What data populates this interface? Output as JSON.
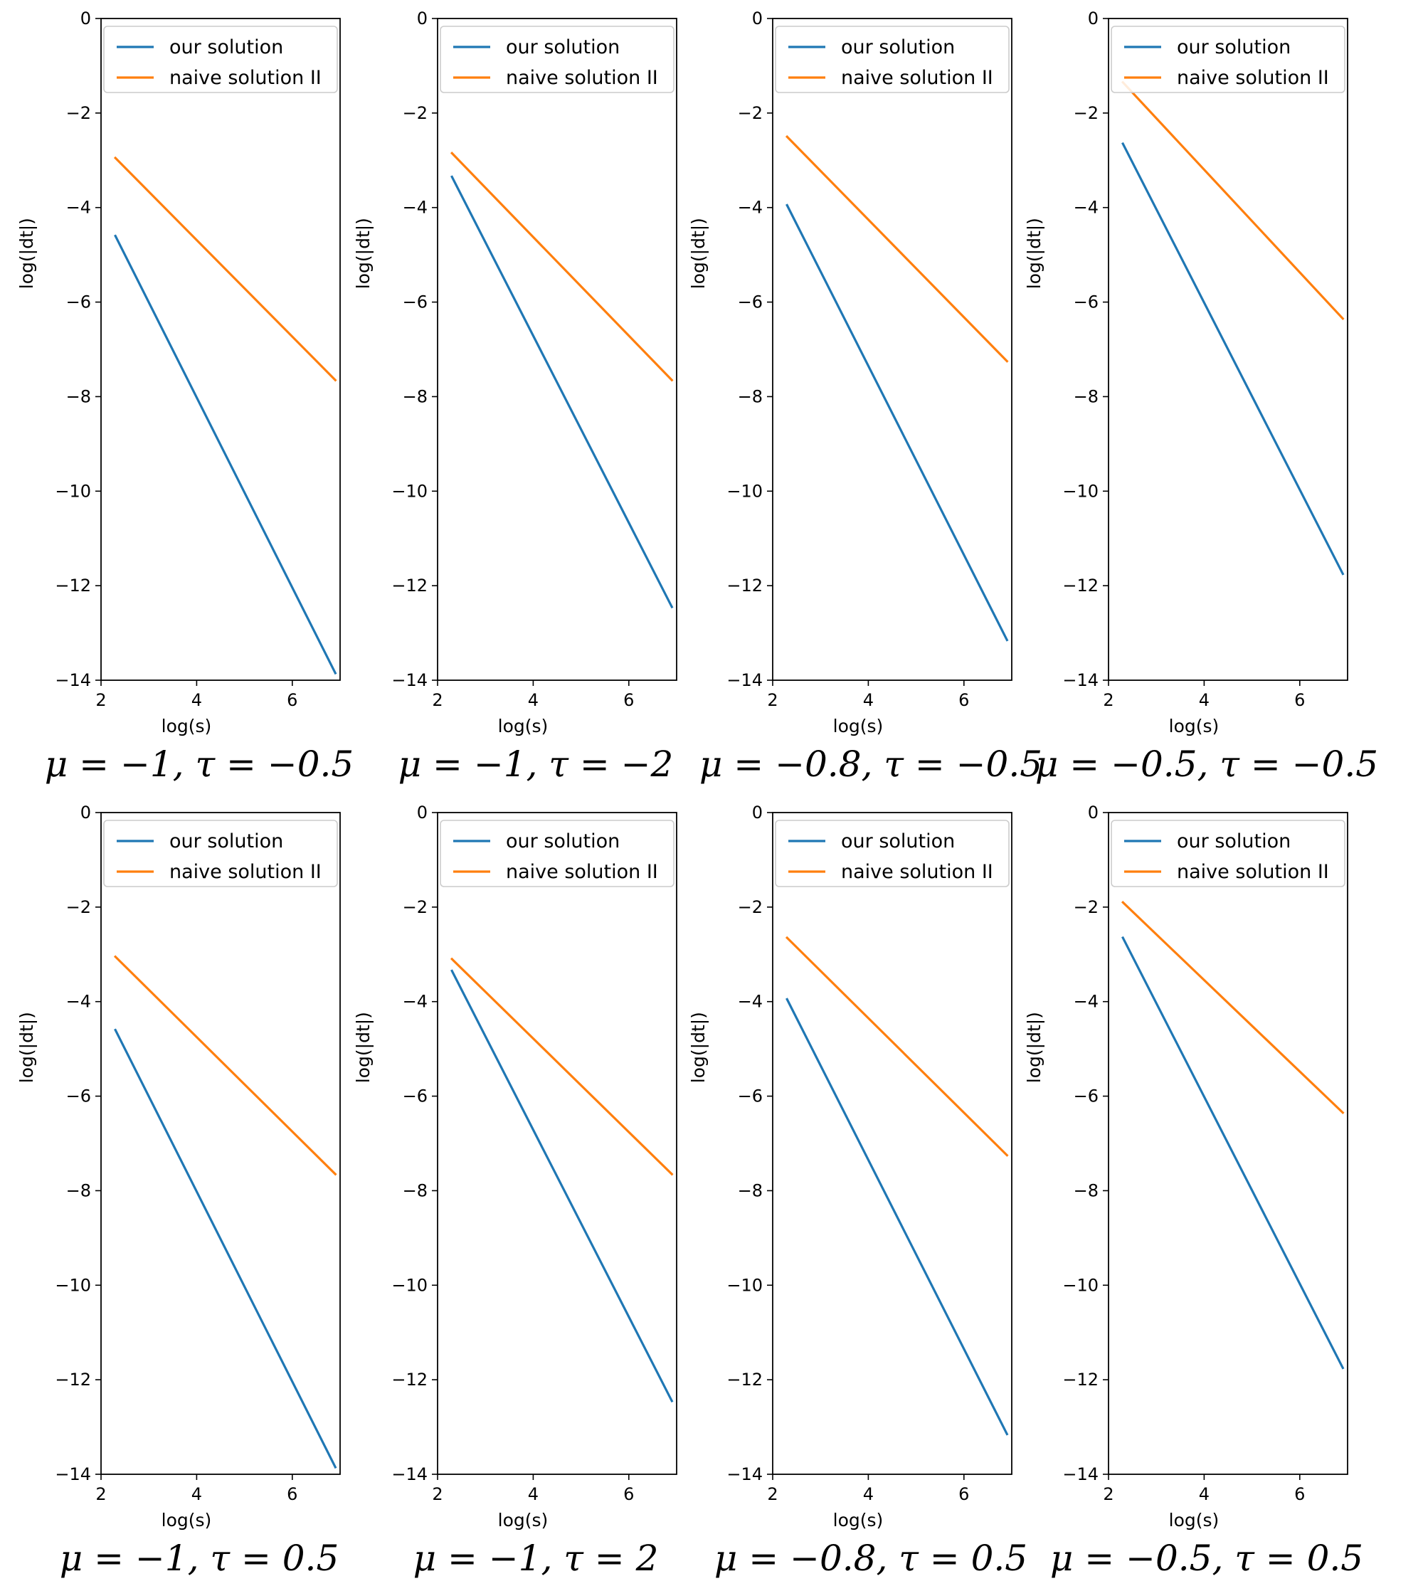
{
  "colors": {
    "our": "#1f77b4",
    "naive": "#ff7f0e"
  },
  "legend_labels": [
    "our solution",
    "naive solution II"
  ],
  "chart_data": [
    {
      "type": "line",
      "caption": "μ = −1, τ = −0.5",
      "xlabel": "log(s)",
      "ylabel": "log(|dt|)",
      "xlim": [
        2,
        7
      ],
      "ylim": [
        -14,
        0
      ],
      "xticks": [
        2,
        4,
        6
      ],
      "yticks": [
        0,
        -2,
        -4,
        -6,
        -8,
        -10,
        -12,
        -14
      ],
      "grid": false,
      "legend": "top-right",
      "series": [
        {
          "name": "our solution",
          "x": [
            2.3,
            6.9
          ],
          "y": [
            -4.6,
            -13.85
          ]
        },
        {
          "name": "naive solution II",
          "x": [
            2.3,
            6.9
          ],
          "y": [
            -2.95,
            -7.65
          ]
        }
      ]
    },
    {
      "type": "line",
      "caption": "μ = −1, τ = −2",
      "xlabel": "log(s)",
      "ylabel": "log(|dt|)",
      "xlim": [
        2,
        7
      ],
      "ylim": [
        -14,
        0
      ],
      "xticks": [
        2,
        4,
        6
      ],
      "yticks": [
        0,
        -2,
        -4,
        -6,
        -8,
        -10,
        -12,
        -14
      ],
      "grid": false,
      "legend": "top-right",
      "series": [
        {
          "name": "our solution",
          "x": [
            2.3,
            6.9
          ],
          "y": [
            -3.35,
            -12.45
          ]
        },
        {
          "name": "naive solution II",
          "x": [
            2.3,
            6.9
          ],
          "y": [
            -2.85,
            -7.65
          ]
        }
      ]
    },
    {
      "type": "line",
      "caption": "μ = −0.8, τ = −0.5",
      "xlabel": "log(s)",
      "ylabel": "log(|dt|)",
      "xlim": [
        2,
        7
      ],
      "ylim": [
        -14,
        0
      ],
      "xticks": [
        2,
        4,
        6
      ],
      "yticks": [
        0,
        -2,
        -4,
        -6,
        -8,
        -10,
        -12,
        -14
      ],
      "grid": false,
      "legend": "top-right",
      "series": [
        {
          "name": "our solution",
          "x": [
            2.3,
            6.9
          ],
          "y": [
            -3.95,
            -13.15
          ]
        },
        {
          "name": "naive solution II",
          "x": [
            2.3,
            6.9
          ],
          "y": [
            -2.5,
            -7.25
          ]
        }
      ]
    },
    {
      "type": "line",
      "caption": "μ = −0.5, τ = −0.5",
      "xlabel": "log(s)",
      "ylabel": "log(|dt|)",
      "xlim": [
        2,
        7
      ],
      "ylim": [
        -14,
        0
      ],
      "xticks": [
        2,
        4,
        6
      ],
      "yticks": [
        0,
        -2,
        -4,
        -6,
        -8,
        -10,
        -12,
        -14
      ],
      "grid": false,
      "legend": "top-right",
      "series": [
        {
          "name": "our solution",
          "x": [
            2.3,
            6.9
          ],
          "y": [
            -2.65,
            -11.75
          ]
        },
        {
          "name": "naive solution II",
          "x": [
            2.3,
            6.9
          ],
          "y": [
            -1.35,
            -6.35
          ]
        }
      ]
    },
    {
      "type": "line",
      "caption": "μ = −1, τ = 0.5",
      "xlabel": "log(s)",
      "ylabel": "log(|dt|)",
      "xlim": [
        2,
        7
      ],
      "ylim": [
        -14,
        0
      ],
      "xticks": [
        2,
        4,
        6
      ],
      "yticks": [
        0,
        -2,
        -4,
        -6,
        -8,
        -10,
        -12,
        -14
      ],
      "grid": false,
      "legend": "top-right",
      "series": [
        {
          "name": "our solution",
          "x": [
            2.3,
            6.9
          ],
          "y": [
            -4.6,
            -13.85
          ]
        },
        {
          "name": "naive solution II",
          "x": [
            2.3,
            6.9
          ],
          "y": [
            -3.05,
            -7.65
          ]
        }
      ]
    },
    {
      "type": "line",
      "caption": "μ = −1, τ = 2",
      "xlabel": "log(s)",
      "ylabel": "log(|dt|)",
      "xlim": [
        2,
        7
      ],
      "ylim": [
        -14,
        0
      ],
      "xticks": [
        2,
        4,
        6
      ],
      "yticks": [
        0,
        -2,
        -4,
        -6,
        -8,
        -10,
        -12,
        -14
      ],
      "grid": false,
      "legend": "top-right",
      "series": [
        {
          "name": "our solution",
          "x": [
            2.3,
            6.9
          ],
          "y": [
            -3.35,
            -12.45
          ]
        },
        {
          "name": "naive solution II",
          "x": [
            2.3,
            6.9
          ],
          "y": [
            -3.1,
            -7.65
          ]
        }
      ]
    },
    {
      "type": "line",
      "caption": "μ = −0.8, τ = 0.5",
      "xlabel": "log(s)",
      "ylabel": "log(|dt|)",
      "xlim": [
        2,
        7
      ],
      "ylim": [
        -14,
        0
      ],
      "xticks": [
        2,
        4,
        6
      ],
      "yticks": [
        0,
        -2,
        -4,
        -6,
        -8,
        -10,
        -12,
        -14
      ],
      "grid": false,
      "legend": "top-right",
      "series": [
        {
          "name": "our solution",
          "x": [
            2.3,
            6.9
          ],
          "y": [
            -3.95,
            -13.15
          ]
        },
        {
          "name": "naive solution II",
          "x": [
            2.3,
            6.9
          ],
          "y": [
            -2.65,
            -7.25
          ]
        }
      ]
    },
    {
      "type": "line",
      "caption": "μ = −0.5, τ = 0.5",
      "xlabel": "log(s)",
      "ylabel": "log(|dt|)",
      "xlim": [
        2,
        7
      ],
      "ylim": [
        -14,
        0
      ],
      "xticks": [
        2,
        4,
        6
      ],
      "yticks": [
        0,
        -2,
        -4,
        -6,
        -8,
        -10,
        -12,
        -14
      ],
      "grid": false,
      "legend": "top-right",
      "series": [
        {
          "name": "our solution",
          "x": [
            2.3,
            6.9
          ],
          "y": [
            -2.65,
            -11.75
          ]
        },
        {
          "name": "naive solution II",
          "x": [
            2.3,
            6.9
          ],
          "y": [
            -1.9,
            -6.35
          ]
        }
      ]
    }
  ]
}
